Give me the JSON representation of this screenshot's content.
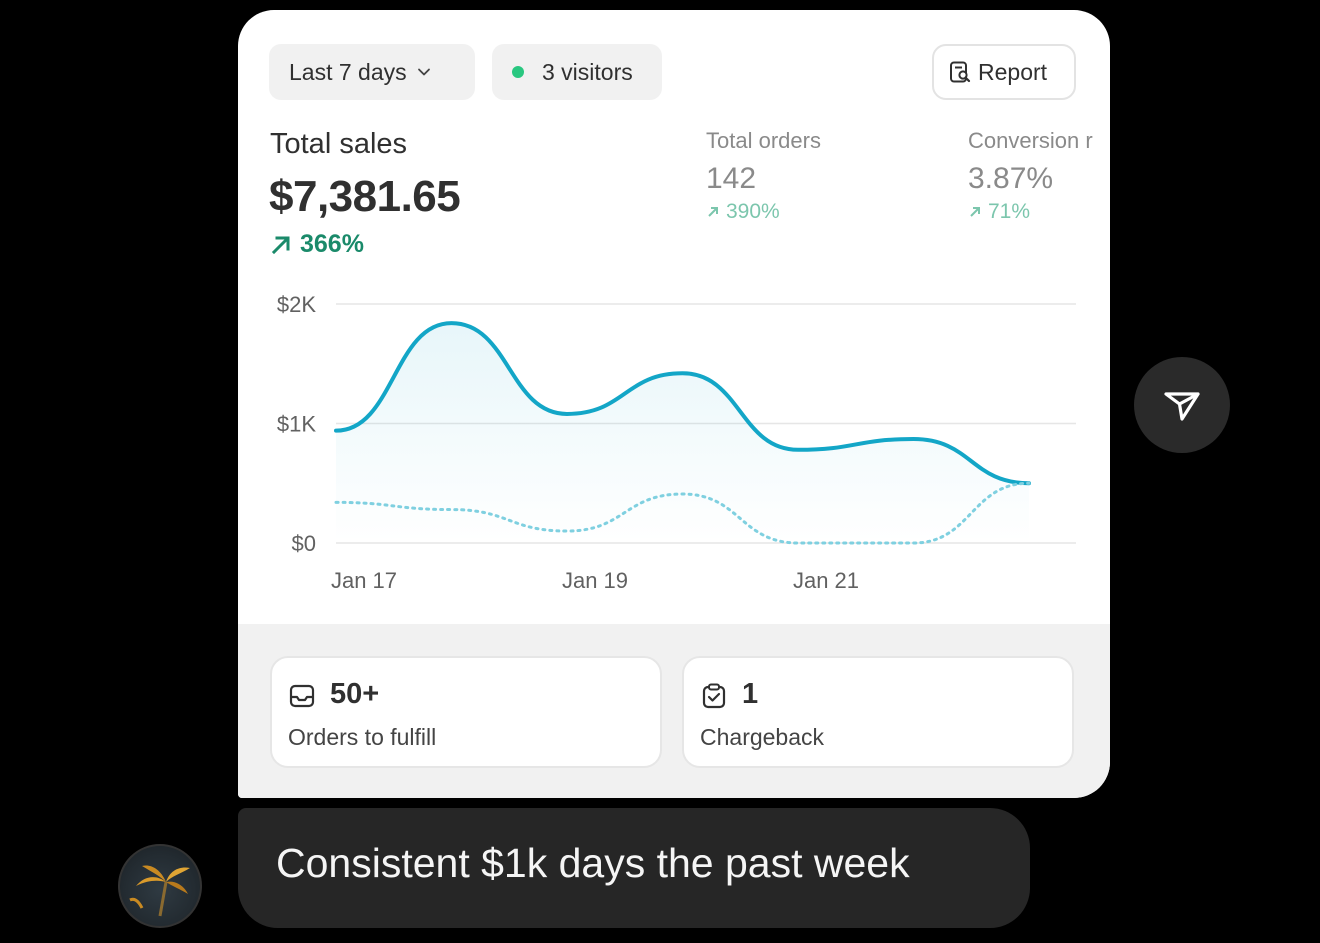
{
  "filters": {
    "range_label": "Last 7 days",
    "visitors_label": "3 visitors",
    "report_label": "Report"
  },
  "total_sales": {
    "label": "Total sales",
    "value": "$7,381.65",
    "change": "366%"
  },
  "total_orders": {
    "label": "Total orders",
    "value": "142",
    "change": "390%"
  },
  "conversion": {
    "label": "Conversion r",
    "value": "3.87%",
    "change": "71%"
  },
  "chart_data": {
    "type": "line",
    "y_ticks": [
      "$2K",
      "$1K",
      "$0"
    ],
    "x_ticks": [
      "Jan 17",
      "Jan 19",
      "Jan 21"
    ],
    "ylim": [
      0,
      2000
    ],
    "x": [
      "Jan 17",
      "Jan 18",
      "Jan 19",
      "Jan 20",
      "Jan 21",
      "Jan 22",
      "Jan 23"
    ],
    "series": [
      {
        "style": "solid",
        "color": "#13a6c7",
        "values": [
          940,
          1840,
          1080,
          1420,
          780,
          870,
          500
        ]
      },
      {
        "style": "dotted",
        "color": "#7fd0e0",
        "values": [
          340,
          280,
          100,
          410,
          0,
          0,
          500
        ]
      }
    ]
  },
  "tiles": [
    {
      "value": "50+",
      "label": "Orders to fulfill",
      "icon": "inbox-icon"
    },
    {
      "value": "1",
      "label": "Chargeback",
      "icon": "clipboard-check-icon"
    }
  ],
  "message": {
    "text": "Consistent $1k days the past week"
  },
  "colors": {
    "accent": "#13a6c7",
    "positive": "#1a8a6a",
    "visitor_dot": "#29c780"
  }
}
